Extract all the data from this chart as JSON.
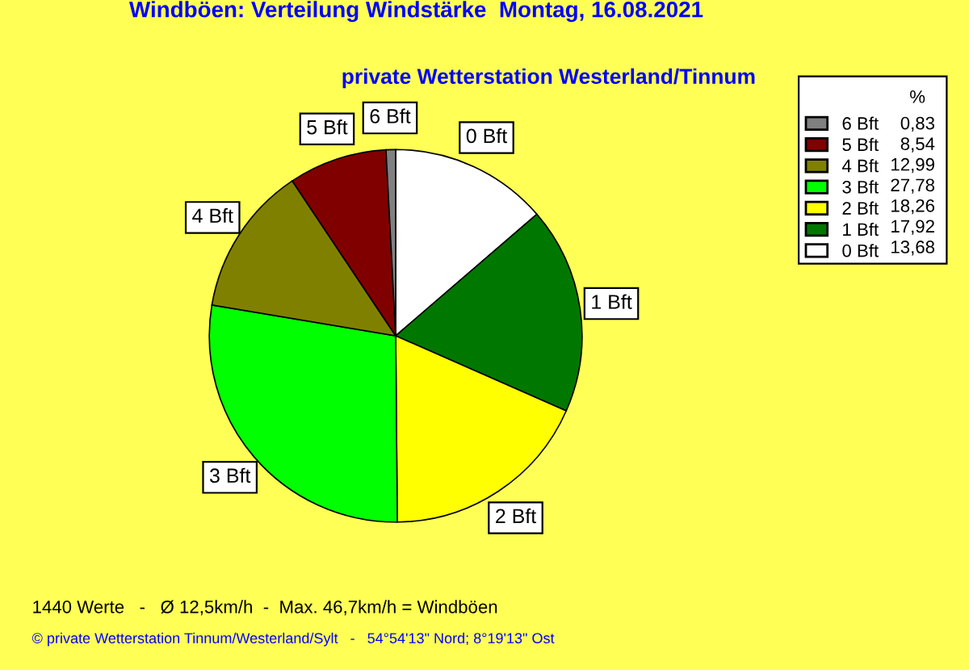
{
  "chart_data": {
    "type": "pie",
    "title": "Windböen: Verteilung Windstärke  Montag, 16.08.2021",
    "subtitle": "private Wetterstation Westerland/Tinnum",
    "categories": [
      "0 Bft",
      "1 Bft",
      "2 Bft",
      "3 Bft",
      "4 Bft",
      "5 Bft",
      "6 Bft"
    ],
    "values": [
      13.68,
      17.92,
      18.26,
      27.78,
      12.99,
      8.54,
      0.83
    ],
    "value_labels": [
      "13,68",
      "17,92",
      "18,26",
      "27,78",
      "12,99",
      "8,54",
      "0,83"
    ],
    "colors": [
      "#ffffff",
      "#007800",
      "#ffff00",
      "#00ff00",
      "#808000",
      "#800000",
      "#808080"
    ],
    "legend": "top right",
    "legend_title": "%",
    "annotations": [
      "1440 Werte   -   Ø 12,5km/h  -  Max. 46,7km/h = Windböen",
      "© private Wetterstation Tinnum/Westerland/Sylt   -   54°54'13\" Nord; 8°19'13\" Ost"
    ]
  }
}
